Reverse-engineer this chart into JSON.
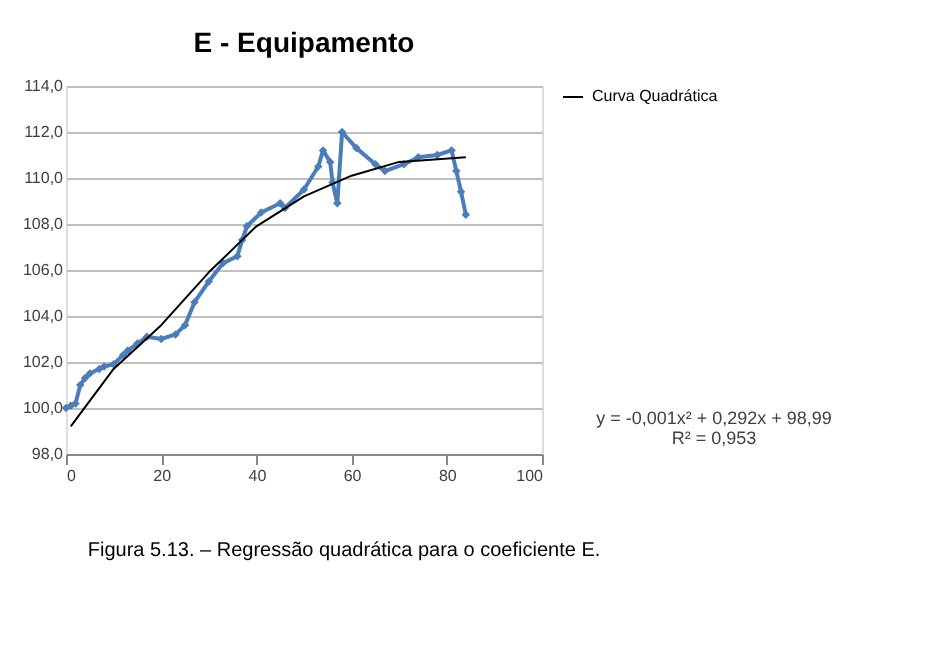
{
  "chart_data": {
    "type": "line",
    "title": "E - Equipamento",
    "xlim": [
      0,
      100
    ],
    "xticks": [
      0,
      20,
      40,
      60,
      80,
      100
    ],
    "ylim": [
      98,
      114
    ],
    "yticks": [
      {
        "value": 98,
        "label": "98,0"
      },
      {
        "value": 100,
        "label": "100,0"
      },
      {
        "value": 102,
        "label": "102,0"
      },
      {
        "value": 104,
        "label": "104,0"
      },
      {
        "value": 106,
        "label": "106,0"
      },
      {
        "value": 108,
        "label": "108,0"
      },
      {
        "value": 110,
        "label": "110,0"
      },
      {
        "value": 112,
        "label": "112,0"
      },
      {
        "value": 114,
        "label": "114,0"
      }
    ],
    "grid": "y",
    "legend": "right",
    "series": [
      {
        "color": "#4a7ebb",
        "marker": "diamond",
        "x": [
          0,
          1,
          2,
          3,
          4,
          5,
          7,
          8,
          10,
          12,
          13,
          15,
          17,
          20,
          23,
          25,
          27,
          30,
          33,
          36,
          37,
          38,
          41,
          45,
          46,
          50,
          53,
          54,
          55.5,
          56,
          57,
          58,
          61,
          65,
          67,
          71,
          74,
          78,
          81,
          82,
          83,
          84
        ],
        "values": [
          100.0,
          100.1,
          100.2,
          101.0,
          101.3,
          101.5,
          101.7,
          101.8,
          101.9,
          102.3,
          102.5,
          102.8,
          103.1,
          103.0,
          103.2,
          103.6,
          104.6,
          105.5,
          106.3,
          106.6,
          107.3,
          107.9,
          108.5,
          108.9,
          108.7,
          109.5,
          110.5,
          111.2,
          110.7,
          109.8,
          108.9,
          112.0,
          111.3,
          110.6,
          110.3,
          110.6,
          110.9,
          111.0,
          111.2,
          110.3,
          109.4,
          108.4
        ]
      },
      {
        "name": "Curva Quadrática",
        "color": "#000000",
        "marker": "none",
        "x": [
          1,
          10,
          20,
          30,
          40,
          50,
          60,
          70,
          84
        ],
        "values": [
          99.2,
          101.7,
          103.6,
          105.9,
          107.9,
          109.2,
          110.1,
          110.7,
          110.9
        ]
      }
    ],
    "annotations": [
      "y = -0,001x² + 0,292x + 98,99",
      "R² = 0,953",
      "Figura 5.13. – Regressão quadrática para o coeficiente E."
    ]
  }
}
